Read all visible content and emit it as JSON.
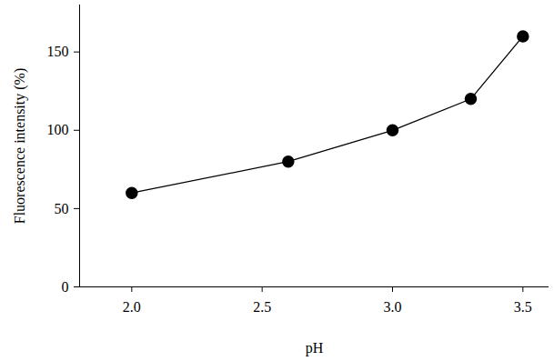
{
  "chart_data": {
    "type": "line",
    "x_label": "pH",
    "y_label": "Fluorescence intensity (%)",
    "x": [
      2.0,
      2.6,
      3.0,
      3.3,
      3.5
    ],
    "values": [
      60,
      80,
      100,
      120,
      160
    ],
    "color": "#000000",
    "marker": "circle",
    "line_style": "solid",
    "xlim": [
      1.8,
      3.6
    ],
    "xticks": [
      {
        "value": 2.0,
        "label": "2.0"
      },
      {
        "value": 2.5,
        "label": "2.5"
      },
      {
        "value": 3.0,
        "label": "3.0"
      },
      {
        "value": 3.5,
        "label": "3.5"
      }
    ],
    "ylim": [
      0,
      180
    ],
    "yticks": [
      0,
      50,
      100,
      150
    ],
    "grid": false
  }
}
